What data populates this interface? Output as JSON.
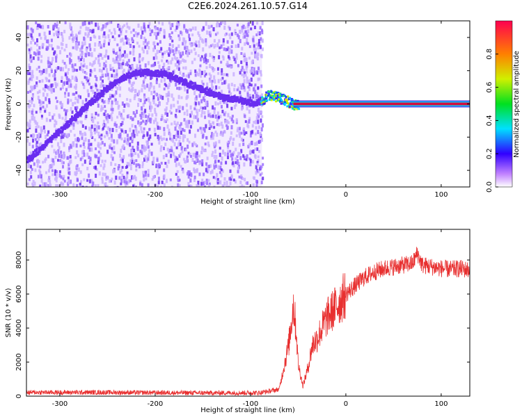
{
  "title": "C2E6.2024.261.10.57.G14",
  "colors": {
    "signal": "#e83030",
    "dot_light": "#c9b0ff",
    "dot_mid": "#9a6cff",
    "dot_dark": "#6a2ef0"
  },
  "chart_data": [
    {
      "type": "heatmap",
      "title": "C2E6.2024.261.10.57.G14",
      "xlabel": "Height of straight line (km)",
      "ylabel": "Frequency (Hz)",
      "xlim": [
        -335,
        130
      ],
      "ylim": [
        -50,
        50
      ],
      "xticks": [
        -300,
        -200,
        -100,
        0,
        100
      ],
      "yticks": [
        -40,
        -20,
        0,
        20,
        40
      ],
      "noise_region_x": [
        -335,
        -88
      ],
      "signal_trace": {
        "x": [
          -335,
          -300,
          -270,
          -250,
          -230,
          -210,
          -190,
          -170,
          -150,
          -130,
          -110,
          -95,
          -80,
          -65,
          -55,
          -40,
          -20,
          0,
          20,
          50,
          80,
          100,
          130
        ],
        "y": [
          -34,
          -16,
          0,
          10,
          17,
          19,
          18,
          13,
          8,
          4,
          2,
          0,
          6,
          3,
          0,
          0,
          0,
          0,
          0,
          0,
          0,
          0,
          0
        ]
      },
      "colorbar": {
        "label": "Normalized spectral amplitude",
        "range": [
          0,
          1
        ],
        "ticks": [
          0.0,
          0.2,
          0.4,
          0.6,
          0.8
        ]
      }
    },
    {
      "type": "line",
      "xlabel": "Height of straight line (km)",
      "ylabel": "SNR (10 * v/v)",
      "xlim": [
        -335,
        130
      ],
      "ylim": [
        0,
        9800
      ],
      "xticks": [
        -300,
        -200,
        -100,
        0,
        100
      ],
      "yticks": [
        0,
        2000,
        4000,
        6000,
        8000
      ],
      "series": [
        {
          "name": "SNR",
          "x": [
            -335,
            -250,
            -150,
            -90,
            -70,
            -60,
            -55,
            -52,
            -50,
            -45,
            -40,
            -35,
            -30,
            -25,
            -20,
            -10,
            0,
            10,
            20,
            30,
            40,
            50,
            60,
            70,
            75,
            80,
            90,
            100,
            110,
            120,
            130
          ],
          "y": [
            220,
            220,
            190,
            200,
            400,
            3000,
            5400,
            3800,
            1900,
            600,
            1600,
            3000,
            3400,
            4000,
            4600,
            5300,
            6000,
            6500,
            7000,
            7300,
            7500,
            7600,
            7700,
            7800,
            8400,
            7700,
            7600,
            7500,
            7450,
            7500,
            7400
          ]
        }
      ]
    }
  ]
}
